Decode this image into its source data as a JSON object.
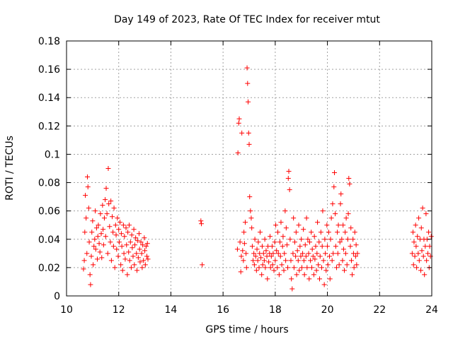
{
  "chart_data": {
    "type": "scatter",
    "title": "Day 149 of 2023, Rate Of TEC Index for receiver mtut",
    "xlabel": "GPS time / hours",
    "ylabel": "ROTI / TECUs",
    "xlim": [
      10,
      24
    ],
    "ylim": [
      0,
      0.18
    ],
    "x_ticks": [
      10,
      12,
      14,
      16,
      18,
      20,
      22,
      24
    ],
    "x_tick_labels": [
      "10",
      "12",
      "14",
      "16",
      "18",
      "20",
      "22",
      "24"
    ],
    "y_ticks": [
      0,
      0.02,
      0.04,
      0.06,
      0.08,
      0.1,
      0.12,
      0.14,
      0.16,
      0.18
    ],
    "y_tick_labels": [
      "0",
      "0.02",
      "0.04",
      "0.06",
      "0.08",
      "0.1",
      "0.12",
      "0.14",
      "0.16",
      "0.18"
    ],
    "grid": true,
    "marker": "+",
    "color": "#ff0000",
    "points": [
      [
        10.65,
        0.019
      ],
      [
        10.68,
        0.025
      ],
      [
        10.7,
        0.045
      ],
      [
        10.72,
        0.071
      ],
      [
        10.75,
        0.055
      ],
      [
        10.78,
        0.03
      ],
      [
        10.8,
        0.084
      ],
      [
        10.82,
        0.077
      ],
      [
        10.85,
        0.062
      ],
      [
        10.87,
        0.038
      ],
      [
        10.9,
        0.015
      ],
      [
        10.92,
        0.008
      ],
      [
        10.95,
        0.028
      ],
      [
        10.97,
        0.045
      ],
      [
        11.0,
        0.053
      ],
      [
        11.02,
        0.022
      ],
      [
        11.05,
        0.035
      ],
      [
        11.08,
        0.04
      ],
      [
        11.1,
        0.06
      ],
      [
        11.12,
        0.033
      ],
      [
        11.15,
        0.048
      ],
      [
        11.18,
        0.026
      ],
      [
        11.2,
        0.042
      ],
      [
        11.22,
        0.05
      ],
      [
        11.25,
        0.037
      ],
      [
        11.28,
        0.031
      ],
      [
        11.3,
        0.058
      ],
      [
        11.33,
        0.044
      ],
      [
        11.35,
        0.027
      ],
      [
        11.38,
        0.064
      ],
      [
        11.4,
        0.047
      ],
      [
        11.42,
        0.036
      ],
      [
        11.45,
        0.055
      ],
      [
        11.48,
        0.068
      ],
      [
        11.5,
        0.042
      ],
      [
        11.52,
        0.076
      ],
      [
        11.55,
        0.058
      ],
      [
        11.58,
        0.03
      ],
      [
        11.6,
        0.09
      ],
      [
        11.62,
        0.065
      ],
      [
        11.65,
        0.049
      ],
      [
        11.68,
        0.038
      ],
      [
        11.7,
        0.067
      ],
      [
        11.72,
        0.025
      ],
      [
        11.75,
        0.056
      ],
      [
        11.78,
        0.045
      ],
      [
        11.8,
        0.035
      ],
      [
        11.82,
        0.062
      ],
      [
        11.85,
        0.02
      ],
      [
        11.88,
        0.05
      ],
      [
        11.9,
        0.043
      ],
      [
        11.92,
        0.033
      ],
      [
        11.95,
        0.055
      ],
      [
        11.98,
        0.028
      ],
      [
        12.0,
        0.047
      ],
      [
        12.02,
        0.038
      ],
      [
        12.05,
        0.052
      ],
      [
        12.08,
        0.022
      ],
      [
        12.1,
        0.044
      ],
      [
        12.12,
        0.035
      ],
      [
        12.15,
        0.018
      ],
      [
        12.18,
        0.05
      ],
      [
        12.2,
        0.03
      ],
      [
        12.22,
        0.042
      ],
      [
        12.25,
        0.026
      ],
      [
        12.28,
        0.048
      ],
      [
        12.3,
        0.036
      ],
      [
        12.33,
        0.015
      ],
      [
        12.35,
        0.045
      ],
      [
        12.38,
        0.031
      ],
      [
        12.4,
        0.05
      ],
      [
        12.42,
        0.025
      ],
      [
        12.45,
        0.038
      ],
      [
        12.48,
        0.02
      ],
      [
        12.5,
        0.043
      ],
      [
        12.52,
        0.034
      ],
      [
        12.55,
        0.028
      ],
      [
        12.58,
        0.047
      ],
      [
        12.6,
        0.022
      ],
      [
        12.62,
        0.036
      ],
      [
        12.65,
        0.041
      ],
      [
        12.68,
        0.03
      ],
      [
        12.7,
        0.018
      ],
      [
        12.72,
        0.039
      ],
      [
        12.75,
        0.027
      ],
      [
        12.78,
        0.044
      ],
      [
        12.8,
        0.033
      ],
      [
        12.82,
        0.024
      ],
      [
        12.85,
        0.038
      ],
      [
        12.88,
        0.03
      ],
      [
        12.9,
        0.02
      ],
      [
        12.92,
        0.036
      ],
      [
        12.95,
        0.025
      ],
      [
        12.98,
        0.041
      ],
      [
        13.0,
        0.032
      ],
      [
        13.02,
        0.022
      ],
      [
        13.05,
        0.035
      ],
      [
        13.08,
        0.028
      ],
      [
        13.1,
        0.037
      ],
      [
        13.12,
        0.026
      ],
      [
        15.15,
        0.053
      ],
      [
        15.17,
        0.051
      ],
      [
        15.2,
        0.022
      ],
      [
        16.55,
        0.033
      ],
      [
        16.57,
        0.101
      ],
      [
        16.6,
        0.122
      ],
      [
        16.62,
        0.125
      ],
      [
        16.65,
        0.038
      ],
      [
        16.68,
        0.017
      ],
      [
        16.7,
        0.028
      ],
      [
        16.72,
        0.115
      ],
      [
        16.75,
        0.032
      ],
      [
        16.78,
        0.025
      ],
      [
        16.8,
        0.045
      ],
      [
        16.82,
        0.037
      ],
      [
        16.85,
        0.052
      ],
      [
        16.88,
        0.03
      ],
      [
        16.9,
        0.02
      ],
      [
        16.92,
        0.161
      ],
      [
        16.94,
        0.15
      ],
      [
        16.96,
        0.137
      ],
      [
        16.98,
        0.115
      ],
      [
        17.0,
        0.107
      ],
      [
        17.02,
        0.07
      ],
      [
        17.05,
        0.06
      ],
      [
        17.08,
        0.055
      ],
      [
        17.1,
        0.048
      ],
      [
        17.12,
        0.035
      ],
      [
        17.15,
        0.025
      ],
      [
        17.18,
        0.03
      ],
      [
        17.2,
        0.022
      ],
      [
        17.22,
        0.04
      ],
      [
        17.25,
        0.028
      ],
      [
        17.28,
        0.018
      ],
      [
        17.3,
        0.033
      ],
      [
        17.33,
        0.025
      ],
      [
        17.35,
        0.038
      ],
      [
        17.38,
        0.02
      ],
      [
        17.4,
        0.03
      ],
      [
        17.42,
        0.045
      ],
      [
        17.45,
        0.027
      ],
      [
        17.48,
        0.015
      ],
      [
        17.5,
        0.035
      ],
      [
        17.52,
        0.022
      ],
      [
        17.55,
        0.03
      ],
      [
        17.58,
        0.025
      ],
      [
        17.6,
        0.04
      ],
      [
        17.62,
        0.02
      ],
      [
        17.65,
        0.032
      ],
      [
        17.68,
        0.028
      ],
      [
        17.7,
        0.012
      ],
      [
        17.72,
        0.035
      ],
      [
        17.75,
        0.024
      ],
      [
        17.78,
        0.03
      ],
      [
        17.8,
        0.042
      ],
      [
        17.82,
        0.02
      ],
      [
        17.85,
        0.028
      ],
      [
        17.88,
        0.035
      ],
      [
        17.9,
        0.022
      ],
      [
        17.92,
        0.03
      ],
      [
        17.95,
        0.018
      ],
      [
        17.98,
        0.038
      ],
      [
        18.0,
        0.025
      ],
      [
        18.02,
        0.05
      ],
      [
        18.05,
        0.032
      ],
      [
        18.08,
        0.02
      ],
      [
        18.1,
        0.045
      ],
      [
        18.12,
        0.03
      ],
      [
        18.15,
        0.015
      ],
      [
        18.18,
        0.038
      ],
      [
        18.2,
        0.028
      ],
      [
        18.22,
        0.052
      ],
      [
        18.25,
        0.022
      ],
      [
        18.28,
        0.035
      ],
      [
        18.3,
        0.042
      ],
      [
        18.33,
        0.018
      ],
      [
        18.35,
        0.03
      ],
      [
        18.38,
        0.06
      ],
      [
        18.4,
        0.025
      ],
      [
        18.42,
        0.048
      ],
      [
        18.45,
        0.036
      ],
      [
        18.48,
        0.02
      ],
      [
        18.5,
        0.083
      ],
      [
        18.52,
        0.088
      ],
      [
        18.55,
        0.075
      ],
      [
        18.57,
        0.04
      ],
      [
        18.6,
        0.025
      ],
      [
        18.62,
        0.012
      ],
      [
        18.65,
        0.005
      ],
      [
        18.68,
        0.03
      ],
      [
        18.7,
        0.055
      ],
      [
        18.72,
        0.02
      ],
      [
        18.75,
        0.038
      ],
      [
        18.78,
        0.028
      ],
      [
        18.8,
        0.045
      ],
      [
        18.82,
        0.015
      ],
      [
        18.85,
        0.032
      ],
      [
        18.88,
        0.025
      ],
      [
        18.9,
        0.05
      ],
      [
        18.92,
        0.018
      ],
      [
        18.95,
        0.035
      ],
      [
        18.98,
        0.028
      ],
      [
        19.0,
        0.04
      ],
      [
        19.02,
        0.02
      ],
      [
        19.05,
        0.03
      ],
      [
        19.08,
        0.047
      ],
      [
        19.1,
        0.025
      ],
      [
        19.12,
        0.015
      ],
      [
        19.15,
        0.036
      ],
      [
        19.18,
        0.028
      ],
      [
        19.2,
        0.055
      ],
      [
        19.22,
        0.02
      ],
      [
        19.25,
        0.04
      ],
      [
        19.28,
        0.03
      ],
      [
        19.3,
        0.012
      ],
      [
        19.32,
        0.038
      ],
      [
        19.35,
        0.025
      ],
      [
        19.38,
        0.045
      ],
      [
        19.4,
        0.02
      ],
      [
        19.42,
        0.033
      ],
      [
        19.45,
        0.028
      ],
      [
        19.48,
        0.015
      ],
      [
        19.5,
        0.042
      ],
      [
        19.52,
        0.026
      ],
      [
        19.55,
        0.035
      ],
      [
        19.58,
        0.018
      ],
      [
        19.6,
        0.03
      ],
      [
        19.62,
        0.052
      ],
      [
        19.65,
        0.022
      ],
      [
        19.68,
        0.038
      ],
      [
        19.7,
        0.012
      ],
      [
        19.72,
        0.028
      ],
      [
        19.75,
        0.045
      ],
      [
        19.78,
        0.02
      ],
      [
        19.8,
        0.035
      ],
      [
        19.82,
        0.06
      ],
      [
        19.85,
        0.025
      ],
      [
        19.88,
        0.008
      ],
      [
        19.9,
        0.04
      ],
      [
        19.92,
        0.03
      ],
      [
        19.95,
        0.018
      ],
      [
        19.98,
        0.05
      ],
      [
        20.0,
        0.035
      ],
      [
        20.02,
        0.022
      ],
      [
        20.05,
        0.045
      ],
      [
        20.08,
        0.028
      ],
      [
        20.1,
        0.012
      ],
      [
        20.12,
        0.04
      ],
      [
        20.15,
        0.055
      ],
      [
        20.18,
        0.025
      ],
      [
        20.2,
        0.065
      ],
      [
        20.22,
        0.03
      ],
      [
        20.25,
        0.077
      ],
      [
        20.27,
        0.087
      ],
      [
        20.3,
        0.058
      ],
      [
        20.32,
        0.035
      ],
      [
        20.35,
        0.02
      ],
      [
        20.38,
        0.045
      ],
      [
        20.4,
        0.03
      ],
      [
        20.42,
        0.05
      ],
      [
        20.45,
        0.022
      ],
      [
        20.48,
        0.038
      ],
      [
        20.5,
        0.065
      ],
      [
        20.52,
        0.072
      ],
      [
        20.55,
        0.04
      ],
      [
        20.58,
        0.025
      ],
      [
        20.6,
        0.05
      ],
      [
        20.62,
        0.033
      ],
      [
        20.65,
        0.018
      ],
      [
        20.68,
        0.045
      ],
      [
        20.7,
        0.03
      ],
      [
        20.72,
        0.055
      ],
      [
        20.75,
        0.022
      ],
      [
        20.78,
        0.04
      ],
      [
        20.8,
        0.058
      ],
      [
        20.82,
        0.083
      ],
      [
        20.85,
        0.079
      ],
      [
        20.88,
        0.035
      ],
      [
        20.9,
        0.048
      ],
      [
        20.92,
        0.025
      ],
      [
        20.95,
        0.015
      ],
      [
        20.98,
        0.04
      ],
      [
        21.0,
        0.03
      ],
      [
        21.02,
        0.02
      ],
      [
        21.05,
        0.045
      ],
      [
        21.08,
        0.028
      ],
      [
        21.1,
        0.036
      ],
      [
        21.12,
        0.022
      ],
      [
        21.15,
        0.03
      ],
      [
        23.25,
        0.03
      ],
      [
        23.28,
        0.045
      ],
      [
        23.3,
        0.022
      ],
      [
        23.32,
        0.038
      ],
      [
        23.35,
        0.028
      ],
      [
        23.38,
        0.05
      ],
      [
        23.4,
        0.035
      ],
      [
        23.42,
        0.02
      ],
      [
        23.45,
        0.042
      ],
      [
        23.48,
        0.03
      ],
      [
        23.5,
        0.055
      ],
      [
        23.52,
        0.025
      ],
      [
        23.55,
        0.04
      ],
      [
        23.58,
        0.018
      ],
      [
        23.6,
        0.048
      ],
      [
        23.62,
        0.032
      ],
      [
        23.65,
        0.062
      ],
      [
        23.68,
        0.028
      ],
      [
        23.7,
        0.04
      ],
      [
        23.72,
        0.015
      ],
      [
        23.75,
        0.035
      ],
      [
        23.78,
        0.058
      ],
      [
        23.8,
        0.025
      ],
      [
        23.82,
        0.04
      ],
      [
        23.85,
        0.03
      ],
      [
        23.88,
        0.045
      ],
      [
        23.9,
        0.02
      ],
      [
        23.92,
        0.035
      ],
      [
        23.95,
        0.028
      ],
      [
        23.98,
        0.042
      ]
    ]
  }
}
